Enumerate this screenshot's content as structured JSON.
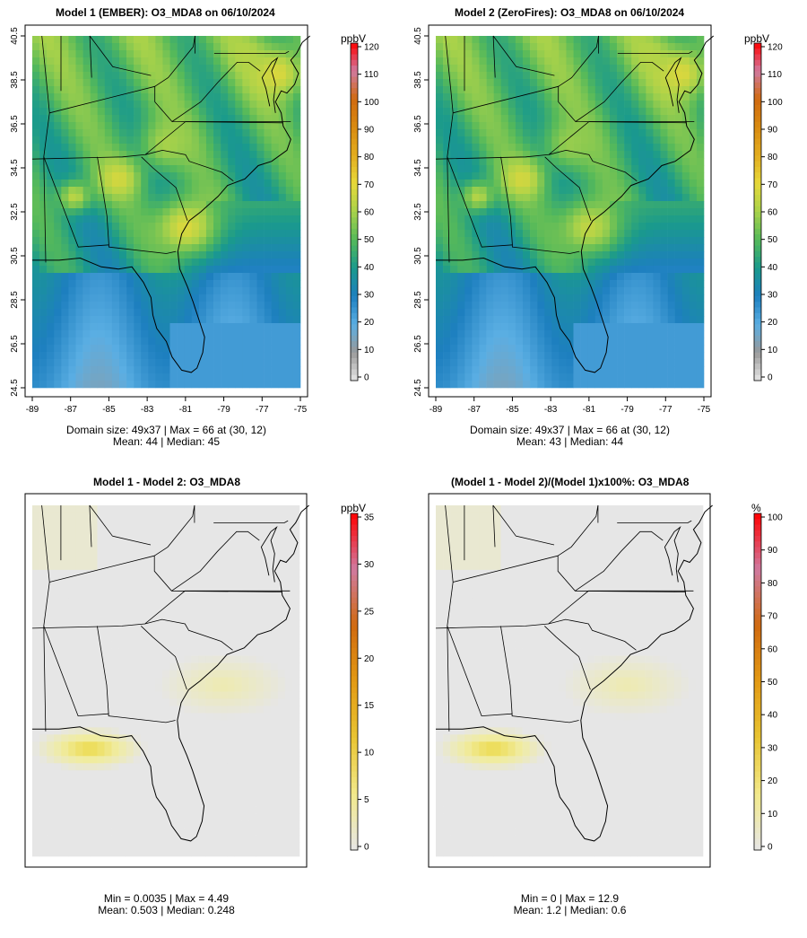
{
  "panels": [
    {
      "title": "Model 1 (EMBER): O3_MDA8 on 06/10/2024",
      "stat1": "Domain size: 49x37 | Max = 66 at (30, 12)",
      "stat2": "Mean: 44 |  Median: 45",
      "unit": "ppbV",
      "colorbar_ticks": [
        "0",
        "10",
        "20",
        "30",
        "40",
        "50",
        "60",
        "70",
        "80",
        "90",
        "100",
        "110",
        "120"
      ],
      "show_axes": true,
      "kind": "conc",
      "hotspots": [
        {
          "lon": -76.2,
          "lat": 38.8,
          "r": 1.0,
          "v": 68
        },
        {
          "lon": -84.5,
          "lat": 34.0,
          "r": 0.8,
          "v": 67
        },
        {
          "lon": -86.8,
          "lat": 33.2,
          "r": 0.6,
          "v": 63
        },
        {
          "lon": -81.0,
          "lat": 31.8,
          "r": 1.2,
          "v": 68
        },
        {
          "lon": -82.0,
          "lat": 35.6,
          "r": 1.0,
          "v": 60
        },
        {
          "lon": -77.8,
          "lat": 39.6,
          "r": 0.6,
          "v": 62
        }
      ]
    },
    {
      "title": "Model 2 (ZeroFires): O3_MDA8 on 06/10/2024",
      "stat1": "Domain size: 49x37 | Max = 66 at (30, 12)",
      "stat2": "Mean: 43 |  Median: 44",
      "unit": "ppbV",
      "colorbar_ticks": [
        "0",
        "10",
        "20",
        "30",
        "40",
        "50",
        "60",
        "70",
        "80",
        "90",
        "100",
        "110",
        "120"
      ],
      "show_axes": true,
      "kind": "conc",
      "hotspots": [
        {
          "lon": -76.2,
          "lat": 38.8,
          "r": 1.0,
          "v": 68
        },
        {
          "lon": -84.5,
          "lat": 34.0,
          "r": 0.8,
          "v": 67
        },
        {
          "lon": -86.8,
          "lat": 33.2,
          "r": 0.6,
          "v": 62
        },
        {
          "lon": -81.0,
          "lat": 31.8,
          "r": 1.2,
          "v": 64
        },
        {
          "lon": -82.0,
          "lat": 35.6,
          "r": 1.0,
          "v": 58
        },
        {
          "lon": -77.8,
          "lat": 39.6,
          "r": 0.6,
          "v": 62
        }
      ]
    },
    {
      "title": "Model 1 - Model 2: O3_MDA8",
      "stat1": "Min = 0.0035 | Max = 4.49",
      "stat2": "Mean: 0.503 |  Median: 0.248",
      "unit": "ppbV",
      "colorbar_ticks": [
        "0",
        "5",
        "10",
        "15",
        "20",
        "25",
        "30",
        "35"
      ],
      "show_axes": false,
      "kind": "diff"
    },
    {
      "title": "(Model 1 - Model 2)/(Model 1)x100%: O3_MDA8",
      "stat1": "Min = 0 | Max = 12.9",
      "stat2": "Mean: 1.2 |  Median: 0.6",
      "unit": "%",
      "colorbar_ticks": [
        "0",
        "10",
        "20",
        "30",
        "40",
        "50",
        "60",
        "70",
        "80",
        "90",
        "100"
      ],
      "show_axes": false,
      "kind": "pct"
    }
  ],
  "axes": {
    "lon_ticks": [
      "-89",
      "-87",
      "-85",
      "-83",
      "-81",
      "-79",
      "-77",
      "-75"
    ],
    "lat_ticks": [
      "24.5",
      "26.5",
      "28.5",
      "30.5",
      "32.5",
      "34.5",
      "36.5",
      "38.5",
      "40.5"
    ]
  },
  "colors": {
    "scale": [
      "#e6e6e6",
      "#999999",
      "#5aaee3",
      "#1d7fbf",
      "#1a9a8c",
      "#55b95a",
      "#a8d24a",
      "#e7d93a",
      "#e3ad20",
      "#d98b10",
      "#d06a10",
      "#d07aa0",
      "#ff0000"
    ]
  }
}
